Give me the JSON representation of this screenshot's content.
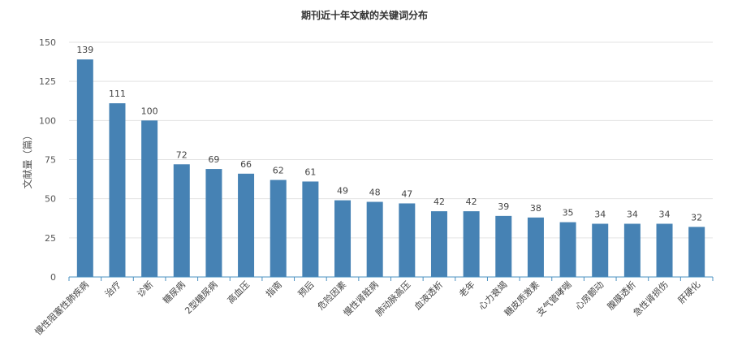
{
  "chart_data": {
    "type": "bar",
    "title": "期刊近十年文献的关键词分布",
    "ylabel": "文献量（篇）",
    "xlabel": "",
    "ylim": [
      0,
      150
    ],
    "yticks": [
      0,
      25,
      50,
      75,
      100,
      125,
      150
    ],
    "grid": true,
    "bar_color": "#4682b4",
    "categories": [
      "慢性阻塞性肺疾病",
      "治疗",
      "诊断",
      "糖尿病",
      "2型糖尿病",
      "高血压",
      "指南",
      "预后",
      "危险因素",
      "慢性肾脏病",
      "肺动脉高压",
      "血液透析",
      "老年",
      "心力衰竭",
      "糖皮质激素",
      "支气管哮喘",
      "心房颤动",
      "腹膜透析",
      "急性肾损伤",
      "肝硬化"
    ],
    "values": [
      139,
      111,
      100,
      72,
      69,
      66,
      62,
      61,
      49,
      48,
      47,
      42,
      42,
      39,
      38,
      35,
      34,
      34,
      34,
      32
    ]
  }
}
